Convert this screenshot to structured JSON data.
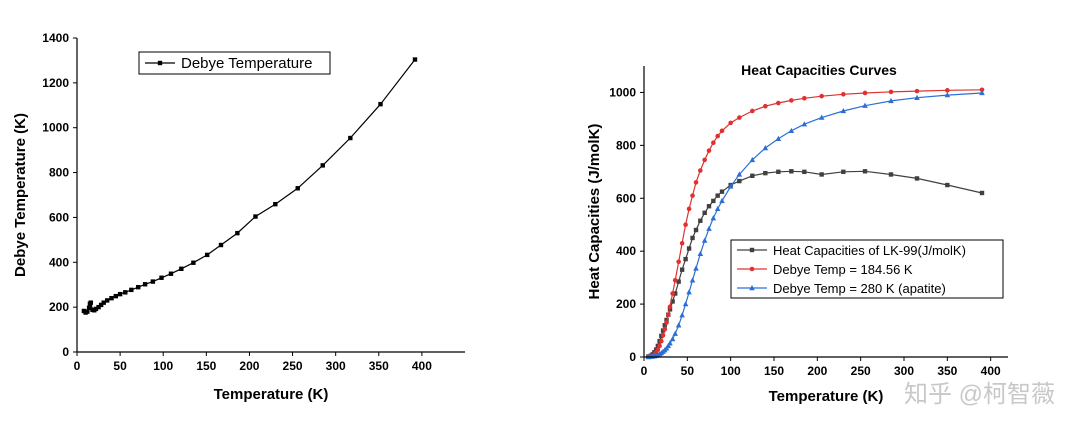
{
  "chart_data": [
    {
      "type": "line",
      "title": "",
      "xlabel": "Temperature (K)",
      "ylabel": "Debye Temperature (K)",
      "xlim": [
        0,
        450
      ],
      "ylim": [
        0,
        1400
      ],
      "xticks": [
        "0",
        "50",
        "100",
        "150",
        "200",
        "250",
        "300",
        "350",
        "400"
      ],
      "yticks": [
        "0",
        "200",
        "400",
        "600",
        "800",
        "1000",
        "1200",
        "1400"
      ],
      "legend": {
        "position": "top-left",
        "entries": [
          "Debye Temperature"
        ]
      },
      "series": [
        {
          "name": "Debye Temperature",
          "color": "#000000",
          "marker": "square",
          "x": [
            8,
            10,
            12,
            14,
            15,
            16,
            18,
            20,
            22,
            25,
            28,
            31,
            35,
            40,
            45,
            50,
            56,
            63,
            71,
            79,
            88,
            98,
            109,
            121,
            135,
            151,
            167,
            186,
            207,
            230,
            256,
            285,
            317,
            352,
            392
          ],
          "y": [
            183,
            176,
            180,
            197,
            215,
            220,
            188,
            186,
            192,
            200,
            210,
            220,
            230,
            240,
            249,
            258,
            266,
            277,
            289,
            302,
            314,
            331,
            349,
            371,
            398,
            433,
            477,
            530,
            604,
            659,
            730,
            832,
            954,
            1105,
            1304
          ]
        }
      ]
    },
    {
      "type": "line",
      "title": "Heat Capacities Curves",
      "xlabel": "Temperature (K)",
      "ylabel": "Heat Capacities (J/molK)",
      "xlim": [
        0,
        420
      ],
      "ylim": [
        0,
        1100
      ],
      "xticks": [
        "0",
        "50",
        "100",
        "150",
        "200",
        "250",
        "300",
        "350",
        "400"
      ],
      "yticks": [
        "0",
        "200",
        "400",
        "600",
        "800",
        "1000"
      ],
      "legend": {
        "position": "center-right",
        "entries": [
          "Heat Capacities of LK-99(J/molK)",
          "Debye Temp = 184.56 K",
          "Debye Temp = 280 K (apatite)"
        ]
      },
      "series": [
        {
          "name": "Heat Capacities of LK-99(J/molK)",
          "color": "#404040",
          "marker": "square",
          "x": [
            5,
            8,
            10,
            12,
            14,
            16,
            18,
            20,
            22,
            24,
            26,
            28,
            30,
            33,
            36,
            40,
            44,
            48,
            52,
            56,
            60,
            65,
            70,
            75,
            80,
            85,
            90,
            100,
            110,
            125,
            140,
            155,
            170,
            185,
            205,
            230,
            255,
            285,
            315,
            350,
            390
          ],
          "y": [
            2,
            5,
            10,
            18,
            28,
            42,
            60,
            80,
            100,
            120,
            140,
            160,
            180,
            210,
            240,
            285,
            330,
            370,
            410,
            450,
            480,
            515,
            545,
            570,
            590,
            610,
            625,
            650,
            665,
            685,
            695,
            700,
            702,
            700,
            690,
            700,
            702,
            690,
            675,
            650,
            620
          ]
        },
        {
          "name": "Debye Temp = 184.56 K",
          "color": "#e03030",
          "marker": "circle",
          "x": [
            5,
            8,
            10,
            12,
            14,
            16,
            18,
            20,
            22,
            24,
            26,
            28,
            30,
            33,
            36,
            40,
            44,
            48,
            52,
            56,
            60,
            65,
            70,
            75,
            80,
            85,
            90,
            100,
            110,
            125,
            140,
            155,
            170,
            185,
            205,
            230,
            255,
            285,
            315,
            350,
            390
          ],
          "y": [
            1,
            3,
            5,
            10,
            18,
            28,
            42,
            60,
            82,
            105,
            130,
            160,
            190,
            240,
            290,
            360,
            430,
            500,
            560,
            610,
            660,
            705,
            745,
            780,
            810,
            835,
            855,
            885,
            905,
            930,
            948,
            960,
            970,
            978,
            986,
            993,
            998,
            1002,
            1005,
            1008,
            1010
          ]
        },
        {
          "name": "Debye Temp = 280 K (apatite)",
          "color": "#2b6fd6",
          "marker": "triangle",
          "x": [
            5,
            8,
            10,
            12,
            14,
            16,
            18,
            20,
            22,
            24,
            26,
            28,
            30,
            33,
            36,
            40,
            44,
            48,
            52,
            56,
            60,
            65,
            70,
            75,
            80,
            85,
            90,
            100,
            110,
            125,
            140,
            155,
            170,
            185,
            205,
            230,
            255,
            285,
            315,
            350,
            390
          ],
          "y": [
            0,
            1,
            2,
            3,
            5,
            8,
            11,
            15,
            20,
            26,
            33,
            42,
            52,
            68,
            88,
            120,
            158,
            200,
            245,
            290,
            335,
            390,
            440,
            485,
            525,
            560,
            590,
            645,
            690,
            745,
            790,
            825,
            855,
            880,
            905,
            930,
            950,
            968,
            980,
            990,
            998
          ]
        }
      ]
    }
  ],
  "watermark": "知乎 @柯智薇"
}
